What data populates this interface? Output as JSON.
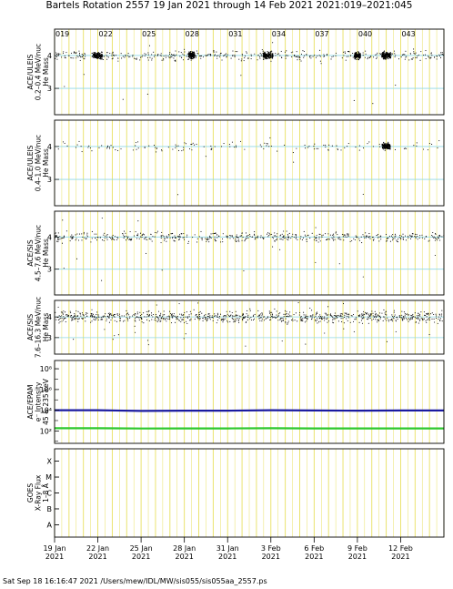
{
  "header": {
    "title": "Bartels Rotation 2557    19 Jan 2021 through 14 Feb 2021    2021:019–2021:045"
  },
  "doy_labels": [
    "019",
    "022",
    "025",
    "028",
    "031",
    "034",
    "037",
    "040",
    "043"
  ],
  "date_labels": [
    {
      "d": "19 Jan",
      "y": "2021"
    },
    {
      "d": "22 Jan",
      "y": "2021"
    },
    {
      "d": "25 Jan",
      "y": "2021"
    },
    {
      "d": "28 Jan",
      "y": "2021"
    },
    {
      "d": "31 Jan",
      "y": "2021"
    },
    {
      "d": "3 Feb",
      "y": "2021"
    },
    {
      "d": "6 Feb",
      "y": "2021"
    },
    {
      "d": "9 Feb",
      "y": "2021"
    },
    {
      "d": "12 Feb",
      "y": "2021"
    }
  ],
  "footer": "Sat Sep 18 16:16:47 2021   /Users/mew/IDL/MW/sis055/sis055aa_2557.ps",
  "colors": {
    "day_line": "#e8e060",
    "mass_ref": "#8fd8e6",
    "flux_blue": "#1a1aa0",
    "flux_green": "#2ec82e",
    "dots": "#000000"
  },
  "chart_data": [
    {
      "type": "scatter",
      "panel": "ACE/ULEIS 0.2–0.4 MeV/nuc",
      "ylabel": [
        "ACE/ULEIS",
        "0.2–0.4 MeV/nuc",
        "He Mass"
      ],
      "yticks": [
        "4",
        "3"
      ],
      "ylim": [
        2.2,
        4.8
      ],
      "xlim": [
        19,
        46
      ],
      "clusters": [
        [
          22.0,
          0.45
        ],
        [
          28.5,
          0.3
        ],
        [
          33.8,
          0.5
        ],
        [
          40.0,
          0.3
        ],
        [
          42.0,
          0.45
        ]
      ],
      "density": 0.55
    },
    {
      "type": "scatter",
      "panel": "ACE/ULEIS 0.4–1.0 MeV/nuc",
      "ylabel": [
        "ACE/ULEIS",
        "0.4–1.0 MeV/nuc",
        "He Mass"
      ],
      "yticks": [
        "4",
        "3"
      ],
      "ylim": [
        2.2,
        4.8
      ],
      "xlim": [
        19,
        46
      ],
      "clusters": [
        [
          42.0,
          0.4
        ]
      ],
      "density": 0.25
    },
    {
      "type": "scatter",
      "panel": "ACE/SIS 4.5–7.6 MeV/nuc",
      "ylabel": [
        "ACE/SIS",
        "4.5–7.6 MeV/nuc",
        "He Mass"
      ],
      "yticks": [
        "4",
        "3"
      ],
      "ylim": [
        2.2,
        4.8
      ],
      "xlim": [
        19,
        46
      ],
      "clusters": [],
      "density": 0.6
    },
    {
      "type": "scatter",
      "panel": "ACE/SIS 7.6–16.3 MeV/nuc",
      "ylabel": [
        "ACE/SIS",
        "7.6–16.3 MeV/nuc",
        "He Mass"
      ],
      "yticks": [
        "4",
        "3"
      ],
      "ylim": [
        2.2,
        4.8
      ],
      "xlim": [
        19,
        46
      ],
      "clusters": [],
      "density": 1.0
    },
    {
      "type": "line",
      "panel": "ACE/EPAM e- Intensity",
      "ylabel": [
        "ACE/EPAM",
        "e⁻ Intensity",
        "45 & 235 keV"
      ],
      "yticks": [
        "10⁸",
        "10⁶",
        "10⁴",
        "10²"
      ],
      "ylim_log10": [
        0.8,
        8.8
      ],
      "xlim": [
        19,
        46
      ],
      "series": [
        {
          "name": "45 keV",
          "color": "#1a1aa0",
          "x": [
            19,
            22,
            25,
            28,
            31,
            34,
            37,
            40,
            43,
            46
          ],
          "y": [
            10000,
            10000,
            8500,
            9000,
            9000,
            10000,
            9500,
            9000,
            9500,
            9500
          ]
        },
        {
          "name": "235 keV",
          "color": "#2ec82e",
          "x": [
            19,
            22,
            25,
            28,
            31,
            34,
            37,
            40,
            43,
            46
          ],
          "y": [
            180,
            180,
            170,
            175,
            175,
            180,
            175,
            175,
            175,
            175
          ]
        }
      ]
    },
    {
      "type": "line",
      "panel": "GOES X-Ray Flux",
      "ylabel": [
        "GOES",
        "X-Ray Flux",
        "1–8 Å"
      ],
      "yticks": [
        "X",
        "M",
        "C",
        "B",
        "A"
      ],
      "xlim": [
        19,
        46
      ],
      "series": []
    }
  ]
}
